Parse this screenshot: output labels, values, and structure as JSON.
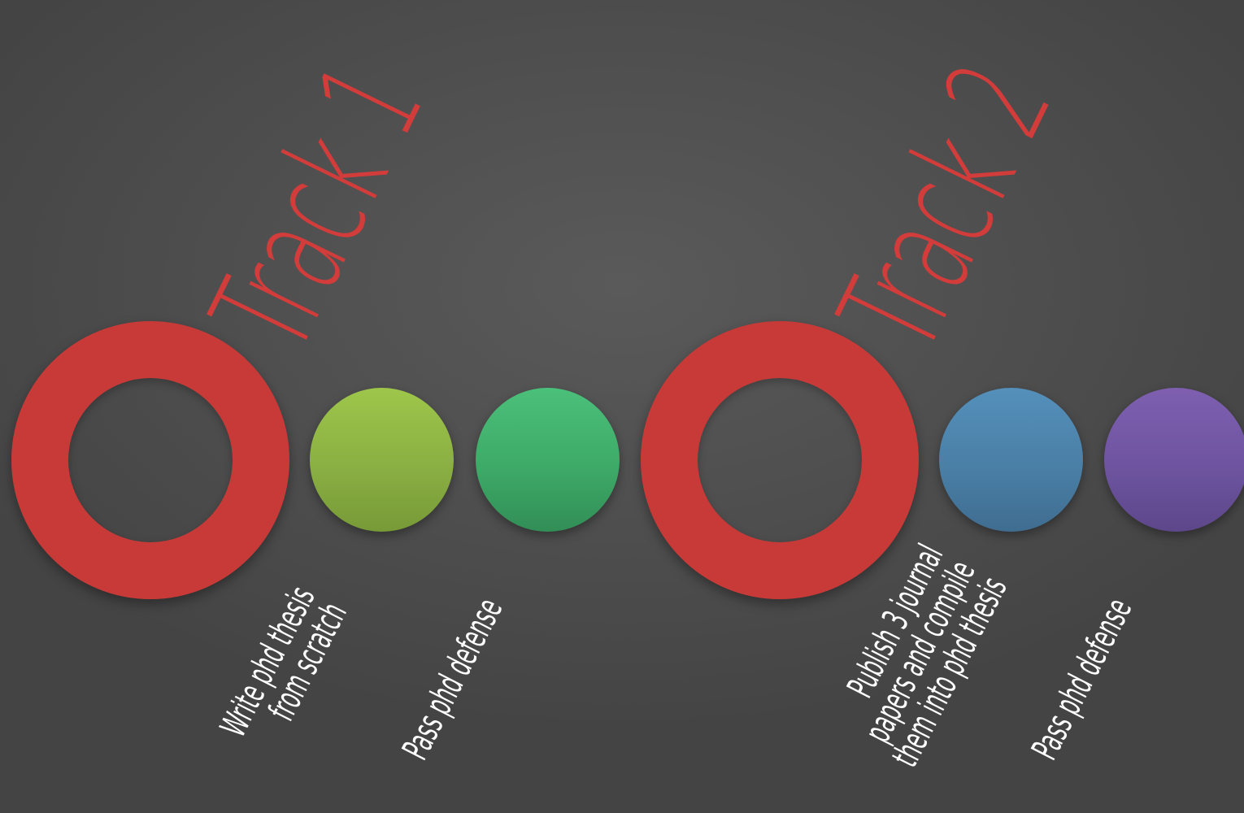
{
  "colors": {
    "background": "#4d4d4d",
    "track_ring": "#c83a37",
    "title": "#d23c3a",
    "label": "#ffffff",
    "step_lime": "#8cb043",
    "step_green": "#3fae6a",
    "step_blue": "#4a7fa6",
    "step_purple": "#6e54a0"
  },
  "tracks": [
    {
      "title": "Track 1",
      "steps": [
        {
          "label": "Write phd thesis\nfrom scratch",
          "color": "lime"
        },
        {
          "label": "Pass phd defense",
          "color": "green"
        }
      ]
    },
    {
      "title": "Track 2",
      "steps": [
        {
          "label": "Publish 3 journal\npapers and compile\nthem into phd thesis",
          "color": "blue"
        },
        {
          "label": "Pass phd defense",
          "color": "purple"
        }
      ]
    }
  ]
}
